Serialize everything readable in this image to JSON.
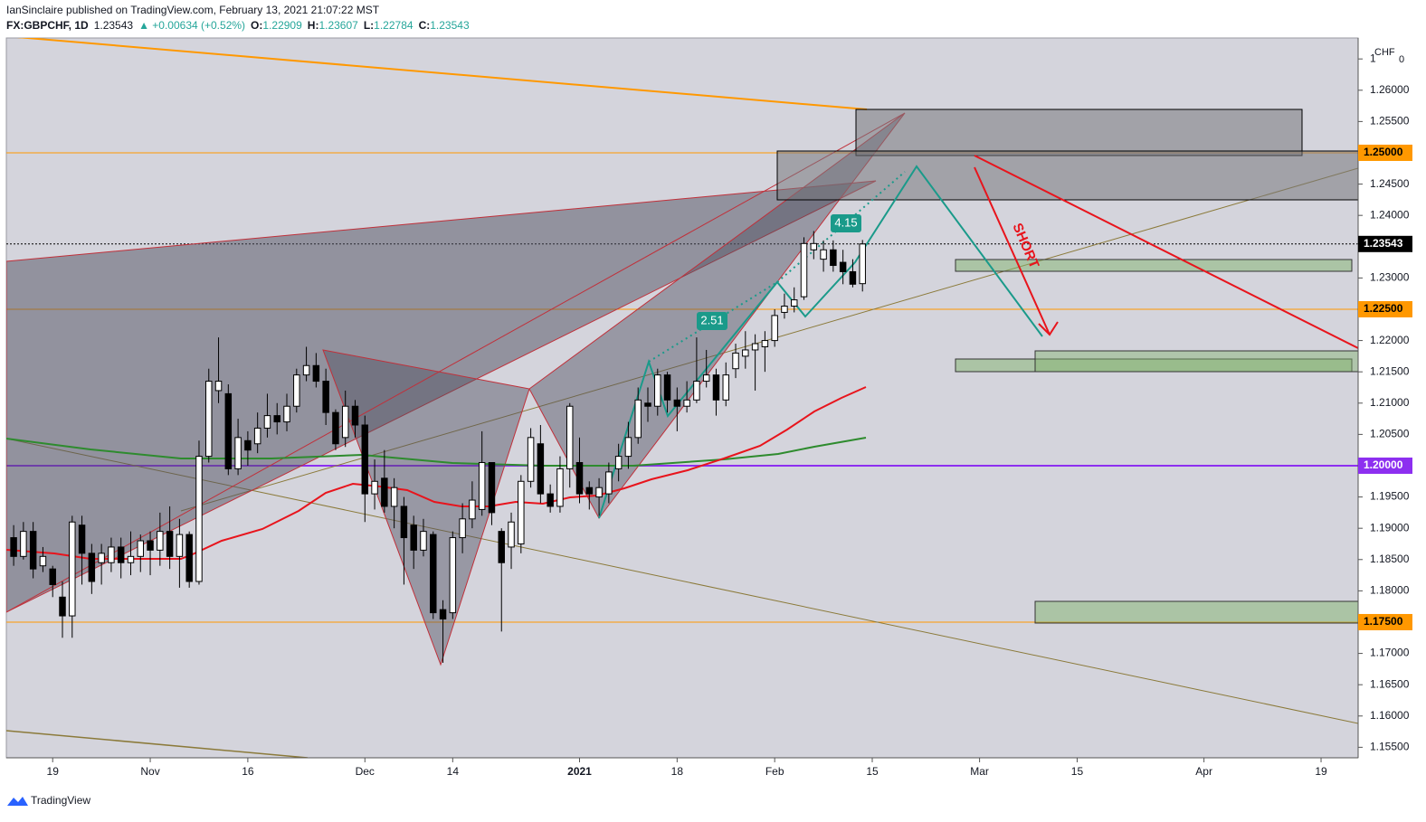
{
  "header": {
    "publisher": "IanSinclaire published on TradingView.com, February 13, 2021 21:07:22 MST",
    "symbol": "FX:GBPCHF, 1D",
    "price": "1.23543",
    "change": "▲ +0.00634 (+0.52%)",
    "ohlc": [
      {
        "label": "O:",
        "value": "1.22909"
      },
      {
        "label": "H:",
        "value": "1.23607"
      },
      {
        "label": "L:",
        "value": "1.22784"
      },
      {
        "label": "C:",
        "value": "1.23543"
      }
    ]
  },
  "footer": {
    "brand": "TradingView"
  },
  "chart_data": {
    "type": "candlestick",
    "up_color": "#ffffff",
    "down_color": "#000000",
    "border_color": "#000000",
    "open": [
      1.1885,
      1.1855,
      1.1895,
      1.184,
      1.1835,
      1.179,
      1.176,
      1.1905,
      1.186,
      1.1845,
      1.1845,
      1.187,
      1.1845,
      1.1855,
      1.188,
      1.1865,
      1.1895,
      1.1855,
      1.189,
      1.1815,
      1.2015,
      1.212,
      1.2115,
      1.1995,
      1.204,
      1.2035,
      1.206,
      1.208,
      1.207,
      1.2095,
      1.2145,
      1.216,
      1.2135,
      1.2085,
      1.2045,
      1.2095,
      1.2065,
      1.1955,
      1.198,
      1.1935,
      1.1935,
      1.1905,
      1.1865,
      1.189,
      1.177,
      1.1765,
      1.1885,
      1.1915,
      1.193,
      1.2005,
      1.1895,
      1.187,
      1.1875,
      1.1975,
      1.2035,
      1.1955,
      1.1935,
      1.1995,
      1.2005,
      1.1965,
      1.195,
      1.1955,
      1.1995,
      1.2015,
      1.2045,
      1.21,
      1.2095,
      1.2145,
      1.2105,
      1.2095,
      1.2105,
      1.2135,
      1.2145,
      1.2105,
      1.2155,
      1.2175,
      1.2185,
      1.219,
      1.22,
      1.2245,
      1.2255,
      1.227,
      1.2345,
      1.233,
      1.2345,
      1.2325,
      1.231,
      1.22909
    ],
    "high": [
      1.1905,
      1.191,
      1.191,
      1.187,
      1.184,
      1.1815,
      1.192,
      1.192,
      1.1875,
      1.1875,
      1.1885,
      1.1885,
      1.1895,
      1.189,
      1.1895,
      1.1925,
      1.1935,
      1.1915,
      1.1895,
      1.204,
      1.2155,
      1.2205,
      1.213,
      1.2075,
      1.2055,
      1.2085,
      1.2115,
      1.21,
      1.2115,
      1.2155,
      1.219,
      1.218,
      1.2155,
      1.209,
      1.212,
      1.2105,
      1.208,
      1.201,
      1.2025,
      1.198,
      1.195,
      1.192,
      1.1915,
      1.1895,
      1.1785,
      1.1895,
      1.194,
      1.1975,
      1.2055,
      1.2005,
      1.19,
      1.1925,
      1.1985,
      1.206,
      1.2065,
      1.197,
      1.2015,
      1.21,
      1.2045,
      1.1975,
      1.198,
      1.2005,
      1.2035,
      1.207,
      1.2125,
      1.2125,
      1.2155,
      1.215,
      1.2125,
      1.2135,
      1.2205,
      1.2185,
      1.2155,
      1.2165,
      1.2195,
      1.2215,
      1.221,
      1.2215,
      1.225,
      1.2275,
      1.2285,
      1.2365,
      1.2375,
      1.236,
      1.236,
      1.2345,
      1.233,
      1.23607
    ],
    "low": [
      1.184,
      1.185,
      1.182,
      1.183,
      1.179,
      1.1725,
      1.1725,
      1.181,
      1.1795,
      1.181,
      1.183,
      1.182,
      1.1825,
      1.183,
      1.1825,
      1.184,
      1.1835,
      1.1805,
      1.1805,
      1.181,
      1.2005,
      1.21,
      1.1985,
      1.1985,
      1.2,
      1.202,
      1.2045,
      1.205,
      1.2055,
      1.2085,
      1.2135,
      1.2125,
      1.2065,
      1.2025,
      1.203,
      1.2045,
      1.191,
      1.193,
      1.1925,
      1.19,
      1.181,
      1.1835,
      1.1855,
      1.1755,
      1.1685,
      1.1755,
      1.186,
      1.19,
      1.192,
      1.1905,
      1.1735,
      1.1835,
      1.186,
      1.1965,
      1.194,
      1.1925,
      1.1925,
      1.1965,
      1.194,
      1.193,
      1.192,
      1.194,
      1.1975,
      1.1995,
      1.2035,
      1.207,
      1.208,
      1.2085,
      1.2055,
      1.2085,
      1.21,
      1.2125,
      1.208,
      1.2095,
      1.214,
      1.2155,
      1.212,
      1.215,
      1.219,
      1.2235,
      1.2245,
      1.2265,
      1.233,
      1.231,
      1.231,
      1.229,
      1.2285,
      1.22784
    ],
    "close": [
      1.1855,
      1.1895,
      1.1835,
      1.1855,
      1.181,
      1.176,
      1.191,
      1.186,
      1.1815,
      1.186,
      1.187,
      1.1845,
      1.1855,
      1.188,
      1.1865,
      1.1895,
      1.1855,
      1.189,
      1.1815,
      1.2015,
      1.2135,
      1.2135,
      1.1995,
      1.2045,
      1.2025,
      1.206,
      1.208,
      1.207,
      1.2095,
      1.2145,
      1.216,
      1.2135,
      1.2085,
      1.2035,
      1.2095,
      1.2065,
      1.1955,
      1.1975,
      1.1935,
      1.1965,
      1.1885,
      1.1865,
      1.1895,
      1.1765,
      1.1755,
      1.1885,
      1.1915,
      1.1945,
      1.2005,
      1.1925,
      1.1845,
      1.191,
      1.1975,
      1.2045,
      1.1955,
      1.1935,
      1.1995,
      1.2095,
      1.1955,
      1.1955,
      1.1965,
      1.199,
      1.2015,
      1.2045,
      1.2105,
      1.2095,
      1.2145,
      1.2105,
      1.2095,
      1.2105,
      1.2135,
      1.2145,
      1.2105,
      1.2145,
      1.218,
      1.2185,
      1.2195,
      1.22,
      1.224,
      1.2255,
      1.2265,
      1.2355,
      1.2355,
      1.2345,
      1.232,
      1.231,
      1.229,
      1.23543
    ],
    "xlim": [
      -0.75,
      137.8
    ],
    "xticks": [
      {
        "value": 4,
        "label": "19"
      },
      {
        "value": 14,
        "label": "Nov"
      },
      {
        "value": 24,
        "label": "16"
      },
      {
        "value": 36,
        "label": "Dec"
      },
      {
        "value": 45,
        "label": "14"
      },
      {
        "value": 58,
        "label": "2021"
      },
      {
        "value": 68,
        "label": "18"
      },
      {
        "value": 78,
        "label": "Feb"
      },
      {
        "value": 88,
        "label": "15"
      },
      {
        "value": 99,
        "label": "Mar"
      },
      {
        "value": 109,
        "label": "15"
      },
      {
        "value": 122,
        "label": "Apr"
      },
      {
        "value": 134,
        "label": "19"
      }
    ],
    "ylim": [
      1.15332,
      1.26835
    ],
    "yticks": [
      {
        "value": 1.155,
        "label": "1.15500"
      },
      {
        "value": 1.16,
        "label": "1.16000"
      },
      {
        "value": 1.165,
        "label": "1.16500"
      },
      {
        "value": 1.17,
        "label": "1.17000"
      },
      {
        "value": 1.18,
        "label": "1.18000"
      },
      {
        "value": 1.185,
        "label": "1.18500"
      },
      {
        "value": 1.19,
        "label": "1.19000"
      },
      {
        "value": 1.195,
        "label": "1.19500"
      },
      {
        "value": 1.205,
        "label": "1.20500"
      },
      {
        "value": 1.21,
        "label": "1.21000"
      },
      {
        "value": 1.215,
        "label": "1.21500"
      },
      {
        "value": 1.22,
        "label": "1.22000"
      },
      {
        "value": 1.23,
        "label": "1.23000"
      },
      {
        "value": 1.24,
        "label": "1.24000"
      },
      {
        "value": 1.245,
        "label": "1.24500"
      },
      {
        "value": 1.255,
        "label": "1.25500"
      },
      {
        "value": 1.26,
        "label": "1.26000"
      },
      {
        "value": 1.265,
        "label": "1"
      }
    ],
    "currency": "CHF",
    "currency_note": "0",
    "price_lines": [
      {
        "value": 1.25,
        "label": "1.25000",
        "color": "#ff9800",
        "text_color": "#000000",
        "dash": false
      },
      {
        "value": 1.225,
        "label": "1.22500",
        "color": "#ff9800",
        "text_color": "#000000",
        "dash": false
      },
      {
        "value": 1.2,
        "label": "1.20000",
        "color": "#8d2ff0",
        "text_color": "#ffffff",
        "dash": false
      },
      {
        "value": 1.175,
        "label": "1.17500",
        "color": "#ff9800",
        "text_color": "#000000",
        "dash": false
      },
      {
        "value": 1.23543,
        "label": "1.23543",
        "color": "#000000",
        "text_color": "#ffffff",
        "dash": true
      }
    ],
    "annotations": {
      "ratio_1": "2.51",
      "ratio_2": "4.15",
      "signal": "SHORT"
    }
  }
}
